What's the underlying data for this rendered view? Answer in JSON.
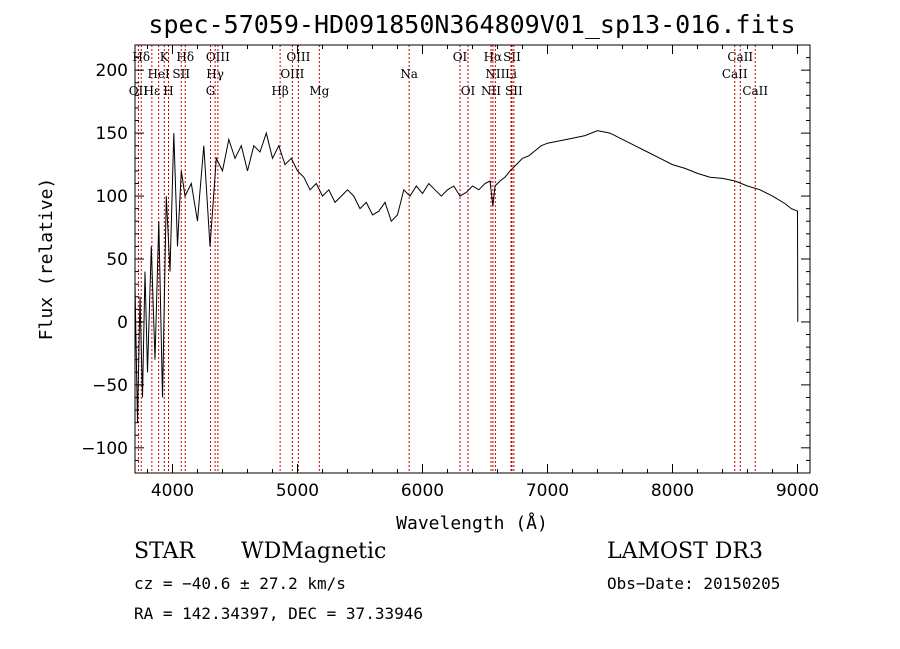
{
  "chart_data": {
    "type": "line",
    "title": "spec-57059-HD091850N364809V01_sp13-016.fits",
    "xlabel": "Wavelength (Å)",
    "ylabel": "Flux (relative)",
    "xlim": [
      3700,
      9100
    ],
    "ylim": [
      -120,
      220
    ],
    "xticks": [
      4000,
      5000,
      6000,
      7000,
      8000,
      9000
    ],
    "yticks": [
      -100,
      -50,
      0,
      50,
      100,
      150,
      200
    ],
    "tick_labels_x": [
      "4000",
      "5000",
      "6000",
      "7000",
      "8000",
      "9000"
    ],
    "tick_labels_y": [
      "−100",
      "−50",
      "0",
      "50",
      "100",
      "150",
      "200"
    ],
    "series": [
      {
        "name": "spectrum",
        "x": [
          3700,
          3720,
          3740,
          3760,
          3780,
          3800,
          3830,
          3860,
          3890,
          3920,
          3950,
          3980,
          4010,
          4040,
          4070,
          4100,
          4150,
          4200,
          4250,
          4300,
          4350,
          4400,
          4450,
          4500,
          4550,
          4600,
          4650,
          4700,
          4750,
          4800,
          4850,
          4900,
          4950,
          5000,
          5050,
          5100,
          5150,
          5200,
          5250,
          5300,
          5350,
          5400,
          5450,
          5500,
          5550,
          5600,
          5650,
          5700,
          5750,
          5800,
          5850,
          5900,
          5950,
          6000,
          6050,
          6100,
          6150,
          6200,
          6250,
          6300,
          6350,
          6400,
          6450,
          6500,
          6540,
          6563,
          6580,
          6620,
          6660,
          6700,
          6750,
          6800,
          6850,
          6900,
          6950,
          7000,
          7100,
          7200,
          7300,
          7400,
          7500,
          7600,
          7700,
          7800,
          7900,
          8000,
          8100,
          8200,
          8300,
          8400,
          8500,
          8600,
          8700,
          8800,
          8900,
          8950,
          9000,
          9002
        ],
        "y": [
          30,
          -80,
          20,
          -60,
          40,
          -40,
          60,
          -30,
          80,
          -60,
          100,
          40,
          150,
          60,
          120,
          100,
          110,
          80,
          140,
          60,
          130,
          120,
          145,
          130,
          140,
          120,
          140,
          135,
          150,
          130,
          140,
          125,
          130,
          120,
          115,
          105,
          110,
          100,
          105,
          95,
          100,
          105,
          100,
          90,
          95,
          85,
          88,
          95,
          80,
          85,
          105,
          100,
          108,
          102,
          110,
          105,
          100,
          105,
          108,
          100,
          103,
          108,
          105,
          110,
          112,
          92,
          108,
          112,
          115,
          120,
          125,
          130,
          132,
          136,
          140,
          142,
          144,
          146,
          148,
          152,
          150,
          145,
          140,
          135,
          130,
          125,
          122,
          118,
          115,
          114,
          112,
          108,
          105,
          100,
          94,
          90,
          88,
          0
        ]
      }
    ],
    "spectral_lines": [
      {
        "label": "Hδ",
        "wavelength": 3750,
        "row": 1
      },
      {
        "label": "K",
        "wavelength": 3934,
        "row": 1
      },
      {
        "label": "Hδ",
        "wavelength": 4102,
        "row": 1
      },
      {
        "label": "OIII",
        "wavelength": 4363,
        "row": 1
      },
      {
        "label": "OIII",
        "wavelength": 5007,
        "row": 1
      },
      {
        "label": "OI",
        "wavelength": 6300,
        "row": 1
      },
      {
        "label": "Hα",
        "wavelength": 6563,
        "row": 1
      },
      {
        "label": "SII",
        "wavelength": 6716,
        "row": 1
      },
      {
        "label": "CaII",
        "wavelength": 8542,
        "row": 1
      },
      {
        "label": "HeI",
        "wavelength": 3889,
        "row": 2
      },
      {
        "label": "SII",
        "wavelength": 4070,
        "row": 2
      },
      {
        "label": "Hγ",
        "wavelength": 4341,
        "row": 2
      },
      {
        "label": "OIII",
        "wavelength": 4959,
        "row": 2
      },
      {
        "label": "Na",
        "wavelength": 5893,
        "row": 2
      },
      {
        "label": "NII",
        "wavelength": 6583,
        "row": 2
      },
      {
        "label": "Li",
        "wavelength": 6708,
        "row": 2
      },
      {
        "label": "CaII",
        "wavelength": 8498,
        "row": 2
      },
      {
        "label": "OII",
        "wavelength": 3727,
        "row": 3
      },
      {
        "label": "Hε",
        "wavelength": 3835,
        "row": 3
      },
      {
        "label": "H",
        "wavelength": 3968,
        "row": 3
      },
      {
        "label": "G",
        "wavelength": 4304,
        "row": 3
      },
      {
        "label": "Hβ",
        "wavelength": 4861,
        "row": 3
      },
      {
        "label": "Mg",
        "wavelength": 5175,
        "row": 3
      },
      {
        "label": "OI",
        "wavelength": 6364,
        "row": 3
      },
      {
        "label": "NII",
        "wavelength": 6548,
        "row": 3
      },
      {
        "label": "SII",
        "wavelength": 6731,
        "row": 3
      },
      {
        "label": "CaII",
        "wavelength": 8662,
        "row": 3
      }
    ]
  },
  "info": {
    "object_class": "STAR",
    "subclass": "WDMagnetic",
    "survey": "LAMOST DR3",
    "cz": "cz = −40.6 ± 27.2 km/s",
    "obs_date": "Obs−Date: 20150205",
    "radec": "RA = 142.34397, DEC =  37.33946"
  },
  "colors": {
    "spectrum": "#000000",
    "line_markers": "#cc0000",
    "axes": "#000000"
  }
}
